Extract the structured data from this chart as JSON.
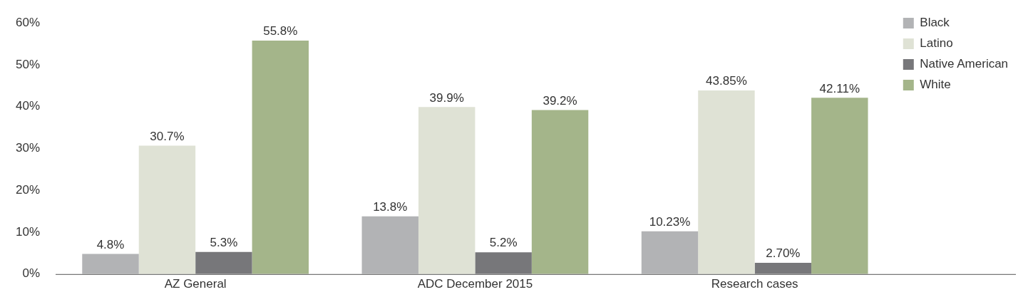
{
  "chart_data": {
    "type": "bar",
    "categories": [
      "AZ General",
      "ADC December 2015",
      "Research cases"
    ],
    "series": [
      {
        "name": "Black",
        "color": "#b2b3b5",
        "values": [
          4.8,
          13.8,
          10.23
        ],
        "value_labels": [
          "4.8%",
          "13.8%",
          "10.23%"
        ]
      },
      {
        "name": "Latino",
        "color": "#dfe2d5",
        "values": [
          30.7,
          39.9,
          43.85
        ],
        "value_labels": [
          "30.7%",
          "39.9%",
          "43.85%"
        ]
      },
      {
        "name": "Native American",
        "color": "#77777a",
        "values": [
          5.3,
          5.2,
          2.7
        ],
        "value_labels": [
          "5.3%",
          "5.2%",
          "2.70%"
        ]
      },
      {
        "name": "White",
        "color": "#a4b58a",
        "values": [
          55.8,
          39.2,
          42.11
        ],
        "value_labels": [
          "55.8%",
          "39.2%",
          "42.11%"
        ]
      }
    ],
    "ylim": [
      0,
      60
    ],
    "yticks": [
      {
        "value": 0,
        "label": "0%"
      },
      {
        "value": 10,
        "label": "10%"
      },
      {
        "value": 20,
        "label": "20%"
      },
      {
        "value": 30,
        "label": "30%"
      },
      {
        "value": 40,
        "label": "40%"
      },
      {
        "value": 50,
        "label": "50%"
      },
      {
        "value": 60,
        "label": "60%"
      }
    ],
    "grid": false,
    "legend": "top right"
  }
}
